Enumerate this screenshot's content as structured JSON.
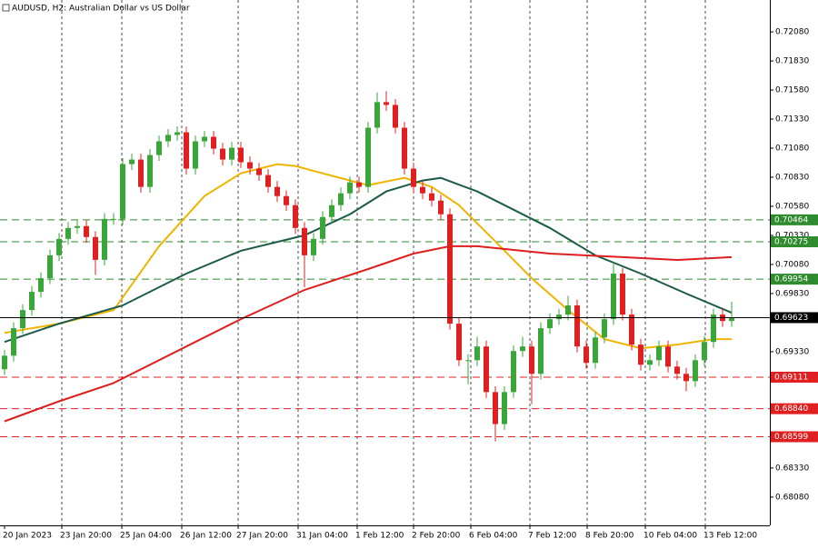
{
  "chart_data": {
    "type": "candlestick",
    "title": "AUDUSD, H2:  Australian Dollar vs US Dollar",
    "open": [
      0.69179,
      0.69296,
      0.69532,
      0.69688,
      0.69845,
      0.69962,
      0.70159,
      0.703,
      0.70394,
      0.7041,
      0.70316,
      0.7012,
      0.70472,
      0.70472,
      0.70943,
      0.70982,
      0.70747,
      0.71021,
      0.71139,
      0.71194,
      0.71217,
      0.70904,
      0.71139,
      0.71178,
      0.71076,
      0.70982,
      0.71084,
      0.70959,
      0.70904,
      0.70849,
      0.70747,
      0.70668,
      0.7059,
      0.70394,
      0.70159,
      0.703,
      0.70488,
      0.7059,
      0.70692,
      0.70786,
      0.70747,
      0.71256,
      0.71476,
      0.71452,
      0.71256,
      0.70904,
      0.70747,
      0.70692,
      0.70629,
      0.70512,
      0.69571,
      0.69257,
      0.69257,
      0.69375,
      0.68983,
      0.68708,
      0.68983,
      0.69336,
      0.69375,
      0.6914,
      0.69532,
      0.6961,
      0.69649,
      0.69728,
      0.69375,
      0.69234,
      0.69453,
      0.6961,
      0.70002,
      0.69649,
      0.69391,
      0.69218,
      0.69257,
      0.69375,
      0.69202,
      0.6914,
      0.69077,
      0.69257,
      0.69414,
      0.69649,
      0.69594
    ],
    "high": [
      0.69346,
      0.69582,
      0.69738,
      0.69895,
      0.70012,
      0.70209,
      0.7035,
      0.70444,
      0.7046,
      0.7046,
      0.70366,
      0.70522,
      0.70522,
      0.70993,
      0.71032,
      0.71032,
      0.71071,
      0.71189,
      0.71244,
      0.71267,
      0.71267,
      0.71189,
      0.71228,
      0.71228,
      0.71126,
      0.71134,
      0.71134,
      0.71009,
      0.70954,
      0.70899,
      0.70797,
      0.70718,
      0.7064,
      0.70444,
      0.7035,
      0.70538,
      0.7064,
      0.70742,
      0.70836,
      0.70836,
      0.71306,
      0.7156,
      0.7157,
      0.71502,
      0.71306,
      0.70954,
      0.70797,
      0.70742,
      0.70679,
      0.70562,
      0.69621,
      0.69307,
      0.6946,
      0.69425,
      0.69033,
      0.69033,
      0.69386,
      0.6946,
      0.69425,
      0.69582,
      0.6966,
      0.69699,
      0.6981,
      0.69778,
      0.69425,
      0.69503,
      0.6966,
      0.70096,
      0.70052,
      0.69699,
      0.69441,
      0.69307,
      0.69425,
      0.69425,
      0.69252,
      0.6919,
      0.69307,
      0.69464,
      0.69699,
      0.69699,
      0.6976
    ],
    "low": [
      0.69129,
      0.69246,
      0.69482,
      0.69638,
      0.69795,
      0.69912,
      0.70109,
      0.7025,
      0.70344,
      0.70266,
      0.6999,
      0.7007,
      0.70422,
      0.70422,
      0.70893,
      0.70697,
      0.70697,
      0.70971,
      0.71089,
      0.71144,
      0.70854,
      0.70854,
      0.71089,
      0.71026,
      0.70932,
      0.70932,
      0.70909,
      0.70854,
      0.70799,
      0.70697,
      0.70618,
      0.7054,
      0.70344,
      0.69884,
      0.70109,
      0.7025,
      0.70438,
      0.7054,
      0.70642,
      0.70697,
      0.70697,
      0.71206,
      0.71402,
      0.71206,
      0.70854,
      0.70697,
      0.70642,
      0.70579,
      0.70462,
      0.69521,
      0.69207,
      0.6905,
      0.69207,
      0.68933,
      0.6856,
      0.68658,
      0.68933,
      0.69286,
      0.6888,
      0.6909,
      0.69482,
      0.6956,
      0.69599,
      0.69325,
      0.69184,
      0.69184,
      0.69403,
      0.6956,
      0.69599,
      0.69341,
      0.69168,
      0.69168,
      0.69207,
      0.69152,
      0.6909,
      0.6899,
      0.69027,
      0.69207,
      0.69364,
      0.69544,
      0.69544
    ],
    "close": [
      0.69296,
      0.69532,
      0.69688,
      0.69845,
      0.69962,
      0.70159,
      0.703,
      0.70394,
      0.7041,
      0.70316,
      0.7012,
      0.70472,
      0.70472,
      0.70943,
      0.70982,
      0.70747,
      0.71021,
      0.71139,
      0.71194,
      0.71217,
      0.70904,
      0.71139,
      0.71178,
      0.71076,
      0.70982,
      0.71084,
      0.70959,
      0.70904,
      0.70849,
      0.70747,
      0.70668,
      0.7059,
      0.70394,
      0.70159,
      0.703,
      0.70488,
      0.7059,
      0.70692,
      0.70786,
      0.70747,
      0.71256,
      0.71476,
      0.71452,
      0.71256,
      0.70904,
      0.70747,
      0.70692,
      0.70629,
      0.70512,
      0.69571,
      0.69257,
      0.69257,
      0.69375,
      0.68983,
      0.68708,
      0.68983,
      0.69336,
      0.69375,
      0.6914,
      0.69532,
      0.6961,
      0.69649,
      0.69728,
      0.69375,
      0.69234,
      0.69453,
      0.6961,
      0.70002,
      0.69649,
      0.69391,
      0.69218,
      0.69257,
      0.69375,
      0.69202,
      0.6914,
      0.69077,
      0.69257,
      0.69414,
      0.69649,
      0.69594,
      0.69626
    ],
    "up_color": "#3aa63a",
    "down_color": "#e02020",
    "series": [
      {
        "color": "#f0b400",
        "x": [
          0,
          6,
          12,
          17,
          22,
          26,
          30,
          32,
          35,
          38,
          40,
          44,
          47,
          50,
          54,
          58,
          62,
          66,
          70,
          74,
          78,
          80
        ],
        "values": [
          0.69492,
          0.69571,
          0.69688,
          0.70237,
          0.70668,
          0.70864,
          0.70943,
          0.70927,
          0.70864,
          0.70802,
          0.70762,
          0.70825,
          0.70747,
          0.7059,
          0.70278,
          0.69962,
          0.69688,
          0.69438,
          0.69359,
          0.69391,
          0.69438,
          0.69438
        ]
      },
      {
        "color": "#1c5a4a",
        "x": [
          0,
          6,
          13,
          20,
          26,
          33,
          38,
          42,
          46,
          48,
          52,
          56,
          60,
          65,
          70,
          75,
          80
        ],
        "values": [
          0.69414,
          0.69571,
          0.69728,
          0.70002,
          0.70198,
          0.70331,
          0.70512,
          0.70708,
          0.70802,
          0.70825,
          0.70708,
          0.70551,
          0.70394,
          0.70159,
          0.70002,
          0.6983,
          0.69665
        ]
      },
      {
        "color": "#dd1f1f",
        "x": [
          0,
          6,
          12,
          20,
          26,
          33,
          40,
          45,
          49,
          52,
          60,
          68,
          74,
          80
        ],
        "values": [
          0.68732,
          0.68904,
          0.69061,
          0.69375,
          0.6961,
          0.69861,
          0.70041,
          0.70174,
          0.70237,
          0.70237,
          0.70174,
          0.70143,
          0.70119,
          0.70143
        ]
      }
    ],
    "levels": [
      {
        "value": 0.70464,
        "label": "0.70464",
        "color": "#2e8b2e"
      },
      {
        "value": 0.70275,
        "label": "0.70275",
        "color": "#2e8b2e"
      },
      {
        "value": 0.69954,
        "label": "0.69954",
        "color": "#2e8b2e"
      },
      {
        "value": 0.69111,
        "label": "0.69111",
        "color": "#e02020"
      },
      {
        "value": 0.6884,
        "label": "0.68840",
        "color": "#e02020"
      },
      {
        "value": 0.68599,
        "label": "0.68599",
        "color": "#e02020"
      }
    ],
    "current_price": {
      "value": 0.69623,
      "label": "0.69623",
      "color": "#000000"
    },
    "ylim": [
      0.67837,
      0.72354
    ],
    "yticks": [
      {
        "value": 0.7208,
        "label": "0.72080"
      },
      {
        "value": 0.7183,
        "label": "0.71830"
      },
      {
        "value": 0.7158,
        "label": "0.71580"
      },
      {
        "value": 0.7133,
        "label": "0.71330"
      },
      {
        "value": 0.7108,
        "label": "0.71080"
      },
      {
        "value": 0.7083,
        "label": "0.70830"
      },
      {
        "value": 0.7058,
        "label": "0.70580"
      },
      {
        "value": 0.7033,
        "label": "0.70330"
      },
      {
        "value": 0.7008,
        "label": "0.70080"
      },
      {
        "value": 0.6983,
        "label": "0.69830"
      },
      {
        "value": 0.6933,
        "label": "0.69330"
      },
      {
        "value": 0.6833,
        "label": "0.68330"
      },
      {
        "value": 0.6808,
        "label": "0.68080"
      }
    ],
    "xlim": [
      -0.5,
      84.2
    ],
    "xticks": [
      {
        "value": 0,
        "label": "20 Jan 2023"
      },
      {
        "value": 6.3,
        "label": "23 Jan 20:00"
      },
      {
        "value": 12.9,
        "label": "25 Jan 04:00"
      },
      {
        "value": 19.5,
        "label": "26 Jan 12:00"
      },
      {
        "value": 25.7,
        "label": "27 Jan 20:00"
      },
      {
        "value": 32.3,
        "label": "31 Jan 04:00"
      },
      {
        "value": 38.8,
        "label": "1 Feb 12:00"
      },
      {
        "value": 45,
        "label": "2 Feb 20:00"
      },
      {
        "value": 51.3,
        "label": "6 Feb 04:00"
      },
      {
        "value": 57.8,
        "label": "7 Feb 12:00"
      },
      {
        "value": 64.1,
        "label": "8 Feb 20:00"
      },
      {
        "value": 70.5,
        "label": "10 Feb 04:00"
      },
      {
        "value": 77.1,
        "label": "13 Feb 12:00"
      }
    ],
    "grid": true
  }
}
